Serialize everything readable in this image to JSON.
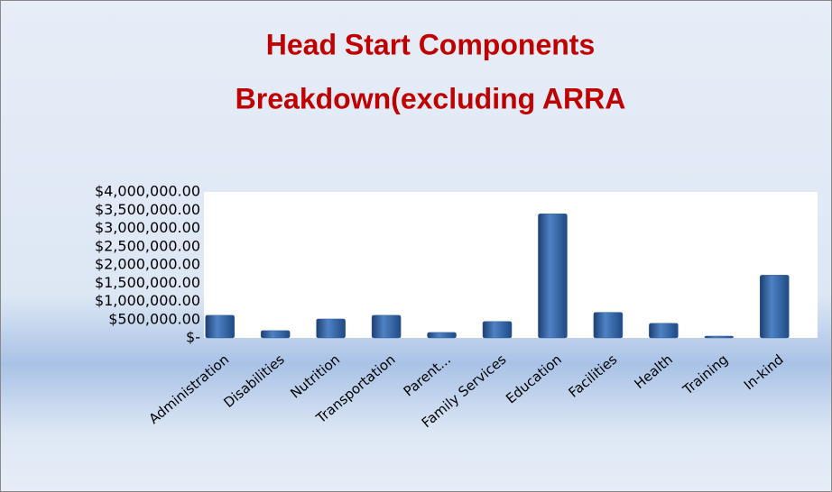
{
  "chart_data": {
    "type": "bar",
    "title": [
      "Head Start Components",
      "Breakdown(excluding ARRA"
    ],
    "categories": [
      "Administration",
      "Disabilities",
      "Nutrition",
      "Transportation",
      "Parent...",
      "Family Services",
      "Education",
      "Facilities",
      "Health",
      "Training",
      "In-kind"
    ],
    "values": [
      620000,
      200000,
      520000,
      620000,
      150000,
      450000,
      3400000,
      700000,
      400000,
      50000,
      1720000
    ],
    "color": "#2f5f9e",
    "ylim": [
      0,
      4000000
    ],
    "yticks": [
      {
        "value": 0,
        "label": "$-"
      },
      {
        "value": 500000,
        "label": "$500,000.00"
      },
      {
        "value": 1000000,
        "label": "$1,000,000.00"
      },
      {
        "value": 1500000,
        "label": "$1,500,000.00"
      },
      {
        "value": 2000000,
        "label": "$2,000,000.00"
      },
      {
        "value": 2500000,
        "label": "$2,500,000.00"
      },
      {
        "value": 3000000,
        "label": "$3,000,000.00"
      },
      {
        "value": 3500000,
        "label": "$3,500,000.00"
      },
      {
        "value": 4000000,
        "label": "$4,000,000.00"
      }
    ],
    "grid": false
  }
}
